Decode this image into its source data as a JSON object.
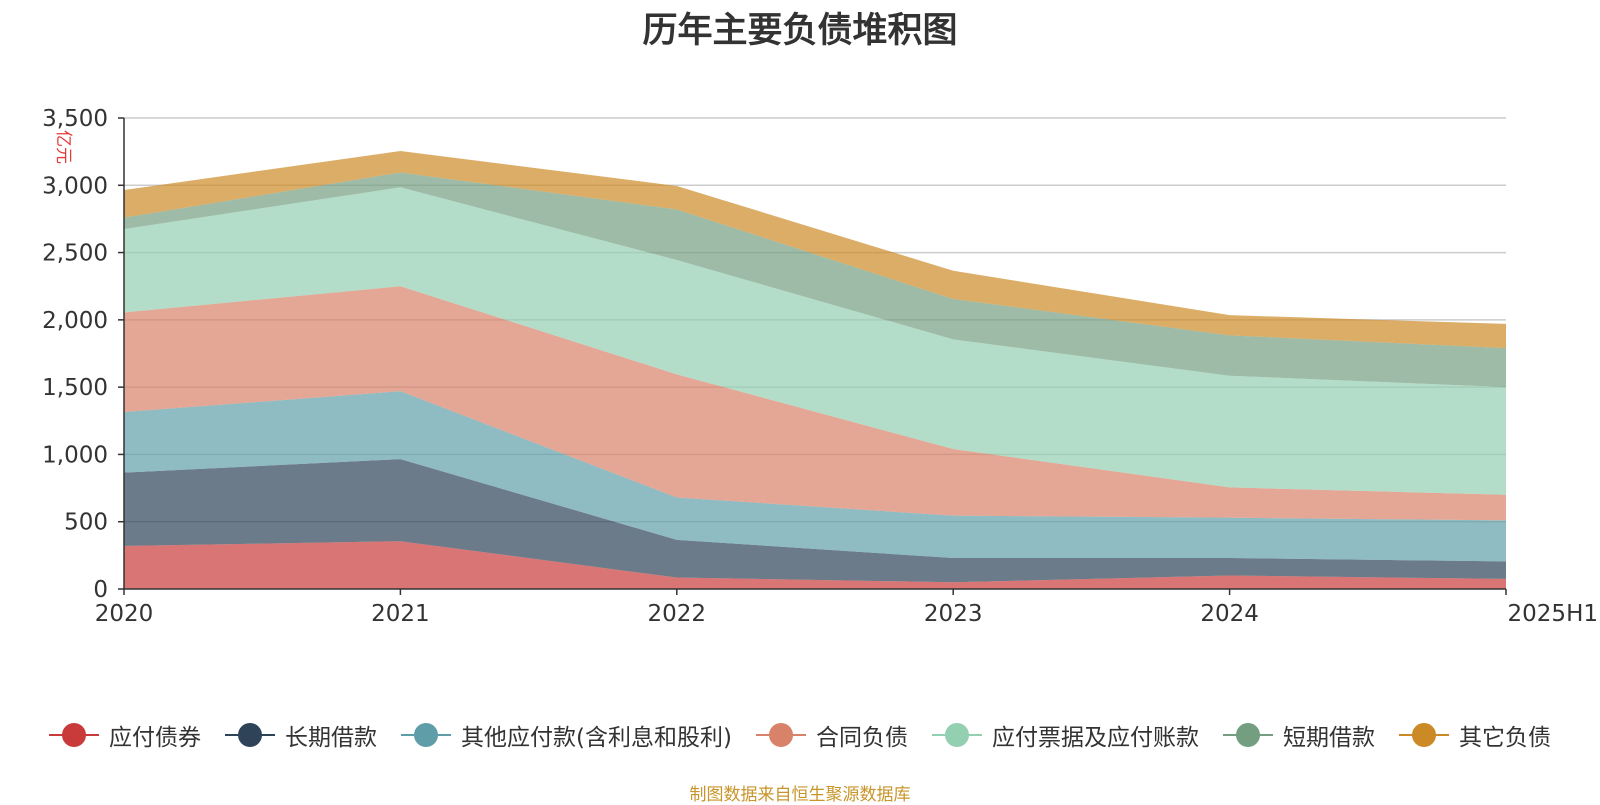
{
  "chart_data": {
    "type": "area",
    "stacked": true,
    "title": "历年主要负债堆积图",
    "unit_label": "亿元",
    "x": [
      "2020",
      "2021",
      "2022",
      "2023",
      "2024",
      "2025H1"
    ],
    "yticks": [
      "0",
      "500",
      "1,000",
      "1,500",
      "2,000",
      "2,500",
      "3,000",
      "3,500"
    ],
    "ylim": [
      0,
      3500
    ],
    "grid": true,
    "legend_position": "bottom",
    "series": [
      {
        "name": "应付债券",
        "color": "#c93a3a",
        "values": [
          320,
          355,
          85,
          50,
          100,
          75
        ]
      },
      {
        "name": "长期借款",
        "color": "#2e4357",
        "values": [
          545,
          610,
          280,
          180,
          130,
          130
        ]
      },
      {
        "name": "其他应付款(含利息和股利)",
        "color": "#5f9ea8",
        "values": [
          450,
          505,
          315,
          315,
          300,
          305
        ]
      },
      {
        "name": "合同负债",
        "color": "#d9826a",
        "values": [
          740,
          780,
          915,
          495,
          225,
          190
        ]
      },
      {
        "name": "应付票据及应付账款",
        "color": "#93cfb1",
        "values": [
          620,
          735,
          850,
          815,
          830,
          800
        ]
      },
      {
        "name": "短期借款",
        "color": "#739e80",
        "values": [
          85,
          110,
          375,
          300,
          300,
          290
        ]
      },
      {
        "name": "其它负债",
        "color": "#cc8a26",
        "values": [
          205,
          160,
          175,
          210,
          150,
          180
        ]
      }
    ],
    "source_note": "制图数据来自恒生聚源数据库"
  }
}
